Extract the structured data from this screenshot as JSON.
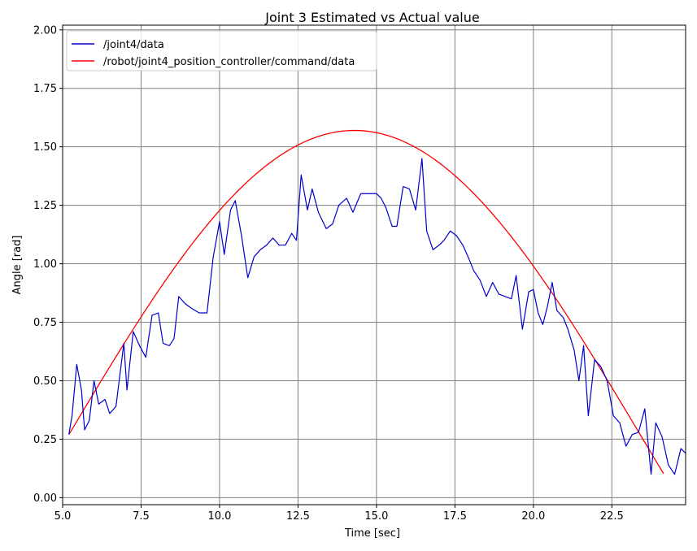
{
  "chart_data": {
    "type": "line",
    "title": "Joint 3 Estimated vs Actual value",
    "xlabel": "Time [sec]",
    "ylabel": "Angle [rad]",
    "xlim": [
      5.0,
      24.85
    ],
    "ylim": [
      -0.03,
      2.02
    ],
    "x_ticks": [
      5.0,
      7.5,
      10.0,
      12.5,
      15.0,
      17.5,
      20.0,
      22.5
    ],
    "x_tick_labels": [
      "5.0",
      "7.5",
      "10.0",
      "12.5",
      "15.0",
      "17.5",
      "20.0",
      "22.5"
    ],
    "y_ticks": [
      0.0,
      0.25,
      0.5,
      0.75,
      1.0,
      1.25,
      1.5,
      1.75,
      2.0
    ],
    "y_tick_labels": [
      "0.00",
      "0.25",
      "0.50",
      "0.75",
      "1.00",
      "1.25",
      "1.50",
      "1.75",
      "2.00"
    ],
    "grid": true,
    "legend_position": "top-left",
    "series": [
      {
        "name": "/joint4/data",
        "color": "#0000cc",
        "x": [
          5.2,
          5.3,
          5.45,
          5.6,
          5.7,
          5.85,
          6.0,
          6.15,
          6.35,
          6.5,
          6.7,
          6.95,
          7.05,
          7.25,
          7.45,
          7.65,
          7.85,
          8.05,
          8.2,
          8.4,
          8.55,
          8.7,
          8.9,
          9.1,
          9.35,
          9.6,
          9.8,
          10.0,
          10.15,
          10.35,
          10.5,
          10.7,
          10.9,
          11.1,
          11.3,
          11.5,
          11.7,
          11.9,
          12.1,
          12.3,
          12.45,
          12.6,
          12.8,
          12.95,
          13.15,
          13.4,
          13.6,
          13.8,
          14.05,
          14.25,
          14.5,
          14.8,
          15.0,
          15.15,
          15.3,
          15.5,
          15.65,
          15.85,
          16.05,
          16.25,
          16.45,
          16.6,
          16.8,
          17.0,
          17.15,
          17.35,
          17.55,
          17.75,
          17.95,
          18.1,
          18.3,
          18.5,
          18.7,
          18.9,
          19.1,
          19.3,
          19.45,
          19.65,
          19.85,
          20.0,
          20.15,
          20.3,
          20.45,
          20.6,
          20.75,
          20.95,
          21.1,
          21.3,
          21.45,
          21.6,
          21.75,
          21.95,
          22.15,
          22.35,
          22.55,
          22.75,
          22.95,
          23.15,
          23.35,
          23.55,
          23.75,
          23.9,
          24.1,
          24.3,
          24.5,
          24.7,
          24.85
        ],
        "y": [
          0.27,
          0.35,
          0.57,
          0.46,
          0.29,
          0.33,
          0.5,
          0.4,
          0.42,
          0.36,
          0.39,
          0.66,
          0.46,
          0.71,
          0.65,
          0.6,
          0.78,
          0.79,
          0.66,
          0.65,
          0.68,
          0.86,
          0.83,
          0.81,
          0.79,
          0.79,
          1.03,
          1.18,
          1.04,
          1.23,
          1.27,
          1.12,
          0.94,
          1.03,
          1.06,
          1.08,
          1.11,
          1.08,
          1.08,
          1.13,
          1.1,
          1.38,
          1.23,
          1.32,
          1.22,
          1.15,
          1.17,
          1.25,
          1.28,
          1.22,
          1.3,
          1.3,
          1.3,
          1.28,
          1.24,
          1.16,
          1.16,
          1.33,
          1.32,
          1.23,
          1.45,
          1.14,
          1.06,
          1.08,
          1.1,
          1.14,
          1.12,
          1.08,
          1.02,
          0.97,
          0.93,
          0.86,
          0.92,
          0.87,
          0.86,
          0.85,
          0.95,
          0.72,
          0.88,
          0.89,
          0.79,
          0.74,
          0.82,
          0.92,
          0.8,
          0.77,
          0.72,
          0.63,
          0.5,
          0.65,
          0.35,
          0.59,
          0.56,
          0.5,
          0.35,
          0.32,
          0.22,
          0.27,
          0.28,
          0.38,
          0.1,
          0.32,
          0.26,
          0.14,
          0.1,
          0.21,
          0.19
        ]
      },
      {
        "name": "/robot/joint4_position_controller/command/data",
        "color": "#ff0000",
        "function": "0.27 + 1.30*sin(pi*(t-5.2)/18.2)",
        "x_range": [
          5.2,
          24.15
        ]
      }
    ]
  }
}
